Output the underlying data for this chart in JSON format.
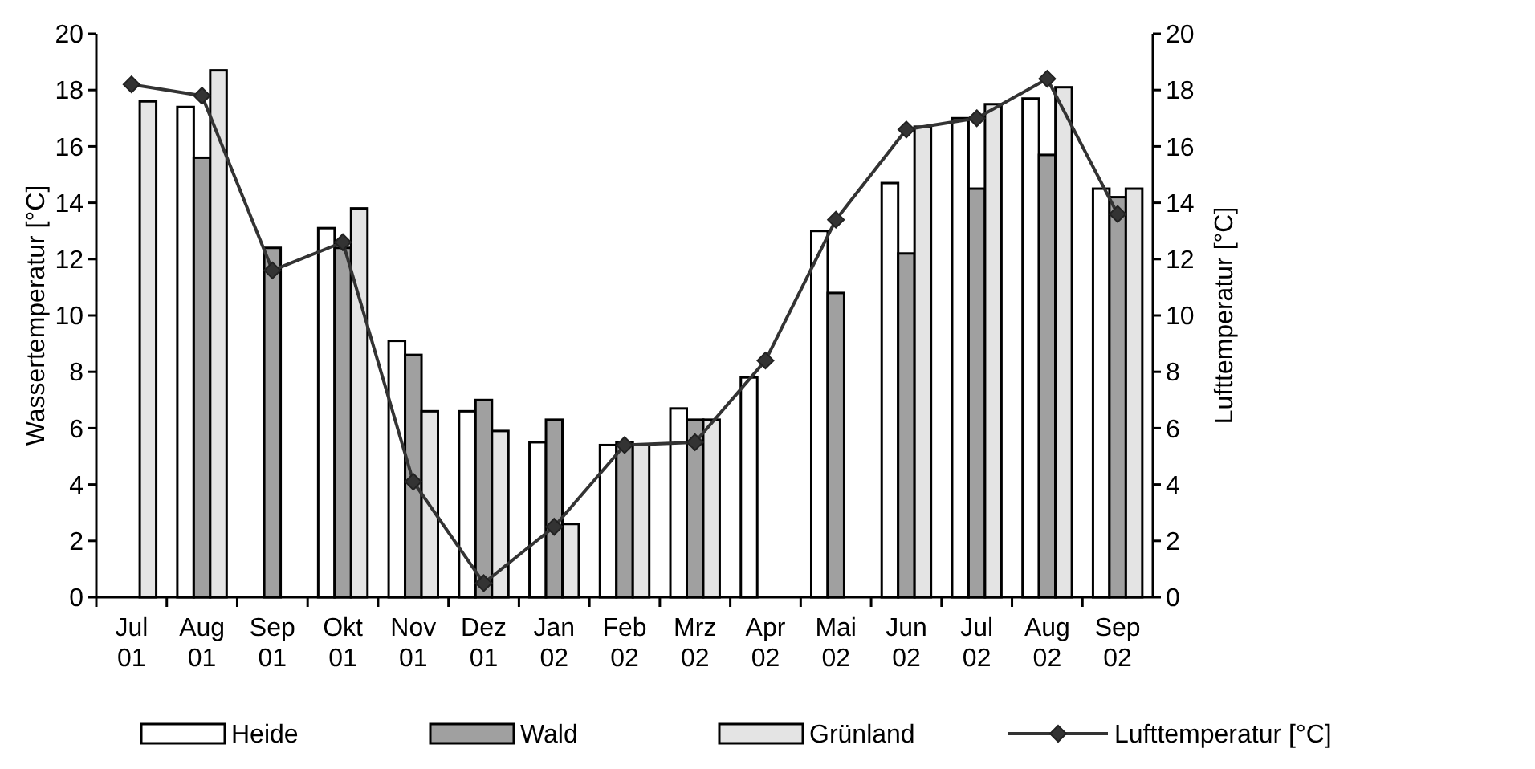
{
  "chart_data": {
    "type": "bar",
    "ylabel": "Wassertemperatur [°C]",
    "y2label": "Lufttemperatur [°C]",
    "categories": [
      "Jul 01",
      "Aug 01",
      "Sep 01",
      "Okt 01",
      "Nov 01",
      "Dez 01",
      "Jan 02",
      "Feb 02",
      "Mrz 02",
      "Apr 02",
      "Mai 02",
      "Jun 02",
      "Jul 02",
      "Aug 02",
      "Sep 02"
    ],
    "series": [
      {
        "name": "Heide",
        "color": "#ffffff",
        "values": [
          null,
          17.4,
          null,
          13.1,
          9.1,
          6.6,
          5.5,
          5.4,
          6.7,
          7.8,
          13.0,
          14.7,
          17.0,
          17.7,
          14.5
        ]
      },
      {
        "name": "Wald",
        "color": "#a0a0a0",
        "values": [
          null,
          15.6,
          12.4,
          12.4,
          8.6,
          7.0,
          6.3,
          5.5,
          6.3,
          null,
          10.8,
          12.2,
          14.5,
          15.7,
          14.2
        ]
      },
      {
        "name": "Grünland",
        "color": "#e4e4e4",
        "values": [
          17.6,
          18.7,
          null,
          13.8,
          6.6,
          5.9,
          2.6,
          5.4,
          6.3,
          null,
          null,
          16.7,
          17.5,
          18.1,
          14.5
        ]
      },
      {
        "name": "Lufttemperatur [°C]",
        "type": "line",
        "axis": "y2",
        "color": "#333333",
        "marker": "diamond",
        "values": [
          18.2,
          17.8,
          11.6,
          12.6,
          4.1,
          0.5,
          2.5,
          5.4,
          5.5,
          8.4,
          13.4,
          16.6,
          17.0,
          18.4,
          13.6
        ]
      }
    ],
    "ylim": [
      0,
      20
    ],
    "yticks": [
      0,
      2,
      4,
      6,
      8,
      10,
      12,
      14,
      16,
      18,
      20
    ],
    "y2lim": [
      0,
      20
    ],
    "y2ticks": [
      0,
      2,
      4,
      6,
      8,
      10,
      12,
      14,
      16,
      18,
      20
    ],
    "grid": false,
    "legend": "bottom"
  }
}
